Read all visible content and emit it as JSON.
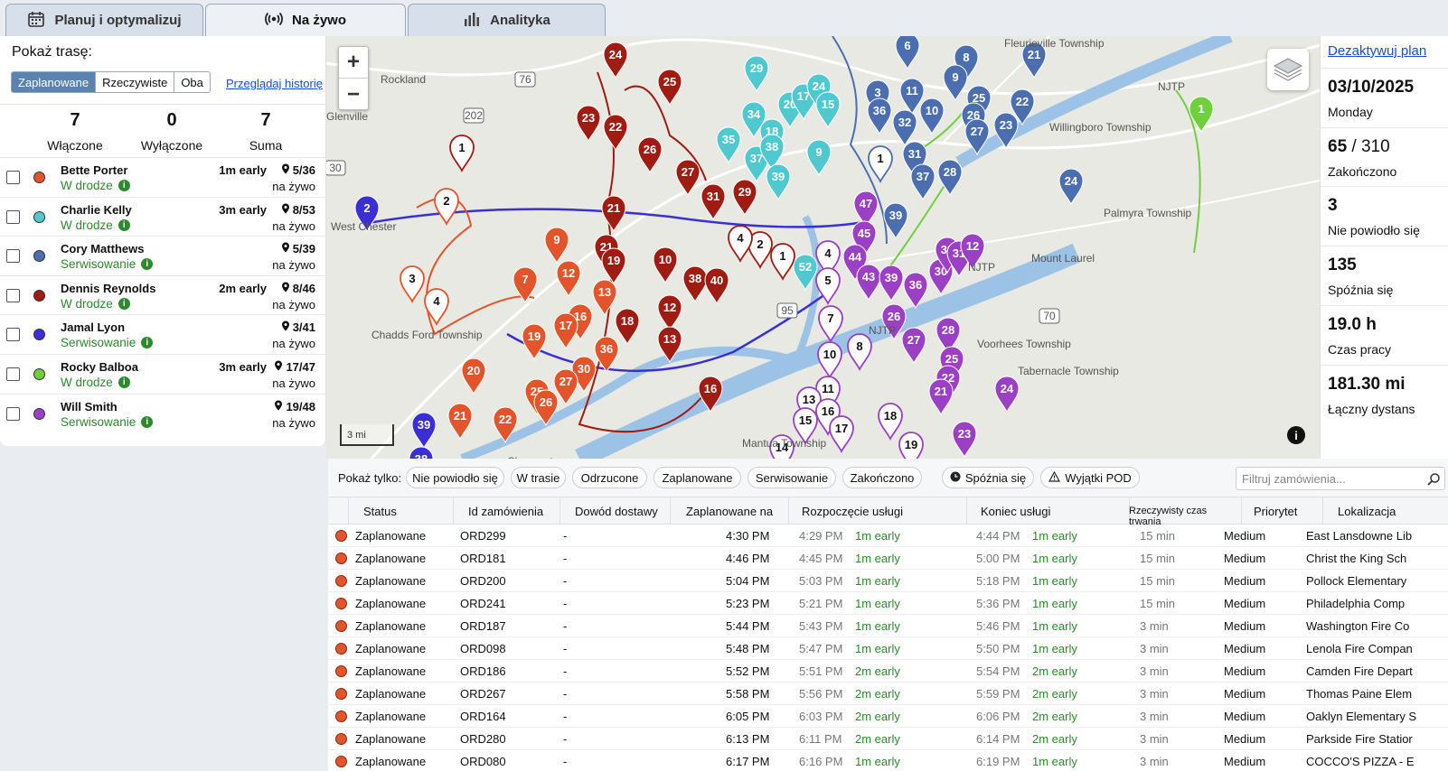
{
  "tabs": [
    {
      "label": "Planuj i optymalizuj",
      "icon": "calendar-icon"
    },
    {
      "label": "Na żywo",
      "icon": "broadcast-icon",
      "active": true
    },
    {
      "label": "Analityka",
      "icon": "bar-chart-icon"
    }
  ],
  "left": {
    "show_route_label": "Pokaż trasę:",
    "route_options": [
      "Zaplanowane",
      "Rzeczywiste",
      "Oba"
    ],
    "selected_route": "Zaplanowane",
    "history_link": "Przeglądaj historię",
    "counts": [
      {
        "value": "7",
        "label": "Włączone"
      },
      {
        "value": "0",
        "label": "Wyłączone"
      },
      {
        "value": "7",
        "label": "Suma"
      }
    ],
    "drivers": [
      {
        "name": "Bette Porter",
        "status": "W drodze",
        "early": "1m early",
        "stops": "5/36",
        "live": "na żywo",
        "color": "#e3542a"
      },
      {
        "name": "Charlie Kelly",
        "status": "W drodze",
        "early": "3m early",
        "stops": "8/53",
        "live": "na żywo",
        "color": "#4fc9cf"
      },
      {
        "name": "Cory Matthews",
        "status": "Serwisowanie",
        "early": "",
        "stops": "5/39",
        "live": "na żywo",
        "color": "#4a6eb0"
      },
      {
        "name": "Dennis Reynolds",
        "status": "W drodze",
        "early": "2m early",
        "stops": "8/46",
        "live": "na żywo",
        "color": "#a01b12"
      },
      {
        "name": "Jamal Lyon",
        "status": "Serwisowanie",
        "early": "",
        "stops": "3/41",
        "live": "na żywo",
        "color": "#3a2fd6"
      },
      {
        "name": "Rocky Balboa",
        "status": "W drodze",
        "early": "3m early",
        "stops": "17/47",
        "live": "na żywo",
        "color": "#6fd03c"
      },
      {
        "name": "Will Smith",
        "status": "Serwisowanie",
        "early": "",
        "stops": "19/48",
        "live": "na żywo",
        "color": "#9b3fc4"
      }
    ]
  },
  "map": {
    "zoom_in": "+",
    "zoom_out": "−",
    "scale": "3 mi",
    "towns": [
      "Fleurieville Township",
      "Rockland",
      "Glenville",
      "West Chester",
      "Chadds Ford Township",
      "Claymont",
      "Willingboro Township",
      "Palmyra Township",
      "Mount Laurel",
      "Voorhees Township",
      "Tabernacle Township",
      "Mantua Township",
      "NJTP",
      "NJTP",
      "NJTP"
    ],
    "route_badges": [
      "76",
      "202",
      "30",
      "95",
      "70"
    ]
  },
  "stats": {
    "deactivate": "Dezaktywuj plan",
    "date": "03/10/2025",
    "day": "Monday",
    "completed_value": "65",
    "completed_total": "310",
    "completed_label": "Zakończono",
    "failed_value": "3",
    "failed_label": "Nie powiodło się",
    "late_value": "135",
    "late_label": "Spóźnia się",
    "worktime_value": "19.0 h",
    "worktime_label": "Czas pracy",
    "distance_value": "181.30 mi",
    "distance_label": "Łączny dystans"
  },
  "filters": {
    "label": "Pokaż tylko:",
    "chips": [
      "Nie powiodło się",
      "W trasie",
      "Odrzucone",
      "Zaplanowane",
      "Serwisowanie",
      "Zakończono"
    ],
    "late_chip": "Spóźnia się",
    "pod_chip": "Wyjątki POD",
    "search_placeholder": "Filtruj zamówienia..."
  },
  "table": {
    "headers": [
      "Status",
      "Id zamówienia",
      "Dowód dostawy",
      "Zaplanowane na",
      "Rozpoczęcie usługi",
      "Koniec usługi",
      "Rzeczywisty czas trwania",
      "Priorytet",
      "Lokalizacja"
    ],
    "rows": [
      {
        "status": "Zaplanowane",
        "id": "ORD299",
        "pod": "-",
        "planned": "4:30 PM",
        "start": "4:29 PM",
        "start_early": "1m early",
        "end": "4:44 PM",
        "end_early": "1m early",
        "duration": "15 min",
        "priority": "Medium",
        "location": "East Lansdowne Lib"
      },
      {
        "status": "Zaplanowane",
        "id": "ORD181",
        "pod": "-",
        "planned": "4:46 PM",
        "start": "4:45 PM",
        "start_early": "1m early",
        "end": "5:00 PM",
        "end_early": "1m early",
        "duration": "15 min",
        "priority": "Medium",
        "location": "Christ the King Sch"
      },
      {
        "status": "Zaplanowane",
        "id": "ORD200",
        "pod": "-",
        "planned": "5:04 PM",
        "start": "5:03 PM",
        "start_early": "1m early",
        "end": "5:18 PM",
        "end_early": "1m early",
        "duration": "15 min",
        "priority": "Medium",
        "location": "Pollock Elementary"
      },
      {
        "status": "Zaplanowane",
        "id": "ORD241",
        "pod": "-",
        "planned": "5:23 PM",
        "start": "5:21 PM",
        "start_early": "1m early",
        "end": "5:36 PM",
        "end_early": "1m early",
        "duration": "15 min",
        "priority": "Medium",
        "location": "Philadelphia Comp"
      },
      {
        "status": "Zaplanowane",
        "id": "ORD187",
        "pod": "-",
        "planned": "5:44 PM",
        "start": "5:43 PM",
        "start_early": "1m early",
        "end": "5:46 PM",
        "end_early": "1m early",
        "duration": "3 min",
        "priority": "Medium",
        "location": "Washington Fire Co"
      },
      {
        "status": "Zaplanowane",
        "id": "ORD098",
        "pod": "-",
        "planned": "5:48 PM",
        "start": "5:47 PM",
        "start_early": "1m early",
        "end": "5:50 PM",
        "end_early": "1m early",
        "duration": "3 min",
        "priority": "Medium",
        "location": "Lenola Fire Compan"
      },
      {
        "status": "Zaplanowane",
        "id": "ORD186",
        "pod": "-",
        "planned": "5:52 PM",
        "start": "5:51 PM",
        "start_early": "2m early",
        "end": "5:54 PM",
        "end_early": "2m early",
        "duration": "3 min",
        "priority": "Medium",
        "location": "Camden Fire Depart"
      },
      {
        "status": "Zaplanowane",
        "id": "ORD267",
        "pod": "-",
        "planned": "5:58 PM",
        "start": "5:56 PM",
        "start_early": "2m early",
        "end": "5:59 PM",
        "end_early": "2m early",
        "duration": "3 min",
        "priority": "Medium",
        "location": "Thomas Paine Elem"
      },
      {
        "status": "Zaplanowane",
        "id": "ORD164",
        "pod": "-",
        "planned": "6:05 PM",
        "start": "6:03 PM",
        "start_early": "2m early",
        "end": "6:06 PM",
        "end_early": "2m early",
        "duration": "3 min",
        "priority": "Medium",
        "location": "Oaklyn Elementary S"
      },
      {
        "status": "Zaplanowane",
        "id": "ORD280",
        "pod": "-",
        "planned": "6:13 PM",
        "start": "6:11 PM",
        "start_early": "2m early",
        "end": "6:14 PM",
        "end_early": "2m early",
        "duration": "3 min",
        "priority": "Medium",
        "location": "Parkside Fire Statior"
      },
      {
        "status": "Zaplanowane",
        "id": "ORD080",
        "pod": "-",
        "planned": "6:17 PM",
        "start": "6:16 PM",
        "start_early": "1m early",
        "end": "6:19 PM",
        "end_early": "1m early",
        "duration": "3 min",
        "priority": "Medium",
        "location": "COCCO'S PIZZA - E"
      }
    ]
  }
}
